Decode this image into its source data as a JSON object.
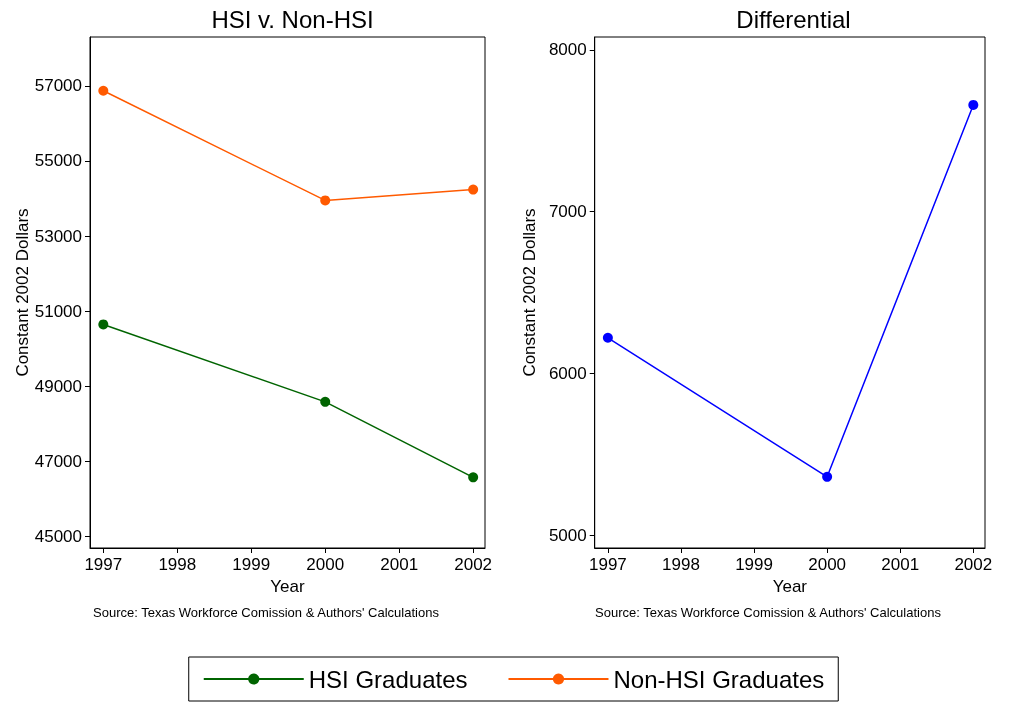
{
  "chart_data": [
    {
      "type": "line",
      "title": "HSI v. Non-HSI",
      "xlabel": "Year",
      "ylabel": "Constant 2002 Dollars",
      "annotations": [
        "Source: Texas Workforce Comission & Authors' Calculations"
      ],
      "x": [
        1997,
        2000,
        2002
      ],
      "xlim": [
        1996.82,
        2002.16
      ],
      "xticks": [
        1997,
        1998,
        1999,
        2000,
        2001,
        2002
      ],
      "ylim": [
        44700,
        58300
      ],
      "yticks": [
        45000,
        47000,
        49000,
        51000,
        53000,
        55000,
        57000
      ],
      "grid": false,
      "legend": "bottom",
      "marker": "circle",
      "line_style": "solid",
      "series": [
        {
          "name": "HSI Graduates",
          "color": "#006400",
          "values": [
            50650,
            48590,
            46580
          ]
        },
        {
          "name": "Non-HSI Graduates",
          "color": "#ff5a00",
          "values": [
            56870,
            53950,
            54240
          ]
        }
      ]
    },
    {
      "type": "line",
      "title": "Differential",
      "xlabel": "Year",
      "ylabel": "Constant 2002 Dollars",
      "annotations": [
        "Source: Texas Workforce Comission & Authors' Calculations"
      ],
      "x": [
        1997,
        2000,
        2002
      ],
      "xlim": [
        1996.82,
        2002.16
      ],
      "xticks": [
        1997,
        1998,
        1999,
        2000,
        2001,
        2002
      ],
      "ylim": [
        4920,
        8080
      ],
      "yticks": [
        5000,
        6000,
        7000,
        8000
      ],
      "grid": false,
      "legend": false,
      "marker": "circle",
      "line_style": "solid",
      "series": [
        {
          "color": "#0000ff",
          "values": [
            6220,
            5360,
            7660
          ]
        }
      ]
    }
  ]
}
